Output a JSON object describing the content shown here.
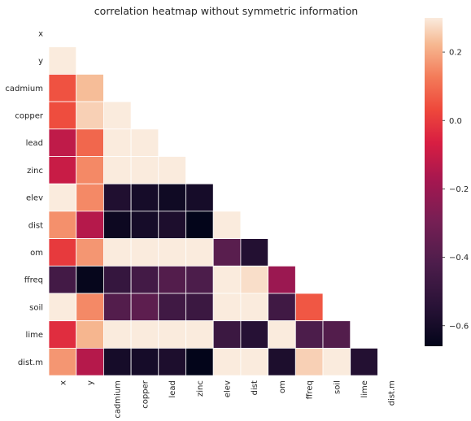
{
  "chart_data": {
    "type": "heatmap",
    "title": "correlation heatmap without symmetric information",
    "variables": [
      "x",
      "y",
      "cadmium",
      "copper",
      "lead",
      "zinc",
      "elev",
      "dist",
      "om",
      "ffreq",
      "soil",
      "lime",
      "dist.m"
    ],
    "mask": "upper triangle including diagonal",
    "values": [
      [
        null,
        null,
        null,
        null,
        null,
        null,
        null,
        null,
        null,
        null,
        null,
        null,
        null
      ],
      [
        0.3,
        null,
        null,
        null,
        null,
        null,
        null,
        null,
        null,
        null,
        null,
        null,
        null
      ],
      [
        0.05,
        0.23,
        null,
        null,
        null,
        null,
        null,
        null,
        null,
        null,
        null,
        null,
        null
      ],
      [
        0.04,
        0.26,
        0.3,
        null,
        null,
        null,
        null,
        null,
        null,
        null,
        null,
        null,
        null
      ],
      [
        -0.12,
        0.09,
        0.3,
        0.3,
        null,
        null,
        null,
        null,
        null,
        null,
        null,
        null,
        null
      ],
      [
        -0.1,
        0.15,
        0.3,
        0.3,
        0.3,
        null,
        null,
        null,
        null,
        null,
        null,
        null,
        null
      ],
      [
        0.3,
        0.15,
        -0.57,
        -0.6,
        -0.62,
        -0.6,
        null,
        null,
        null,
        null,
        null,
        null,
        null
      ],
      [
        0.16,
        -0.14,
        -0.63,
        -0.6,
        -0.58,
        -0.66,
        0.3,
        null,
        null,
        null,
        null,
        null,
        null
      ],
      [
        0.0,
        0.17,
        0.3,
        0.3,
        0.3,
        0.3,
        -0.38,
        -0.56,
        null,
        null,
        null,
        null,
        null
      ],
      [
        -0.45,
        -0.65,
        -0.5,
        -0.45,
        -0.4,
        -0.42,
        0.3,
        0.28,
        -0.2,
        null,
        null,
        null,
        null
      ],
      [
        0.3,
        0.15,
        -0.4,
        -0.37,
        -0.46,
        -0.48,
        0.3,
        0.3,
        -0.46,
        0.06,
        null,
        null,
        null
      ],
      [
        -0.03,
        0.22,
        0.3,
        0.3,
        0.3,
        0.3,
        -0.48,
        -0.55,
        0.3,
        -0.42,
        -0.4,
        null,
        null
      ],
      [
        0.17,
        -0.14,
        -0.6,
        -0.6,
        -0.58,
        -0.66,
        0.3,
        0.3,
        -0.58,
        0.26,
        0.3,
        -0.56,
        null
      ]
    ],
    "colorbar": {
      "min": -0.66,
      "max": 0.3,
      "ticks": [
        0.2,
        0.0,
        -0.2,
        -0.4,
        -0.6
      ],
      "tick_labels": [
        "0.2",
        "0.0",
        "−0.2",
        "−0.4",
        "−0.6"
      ]
    },
    "colormap": "rocket",
    "grid": false
  }
}
